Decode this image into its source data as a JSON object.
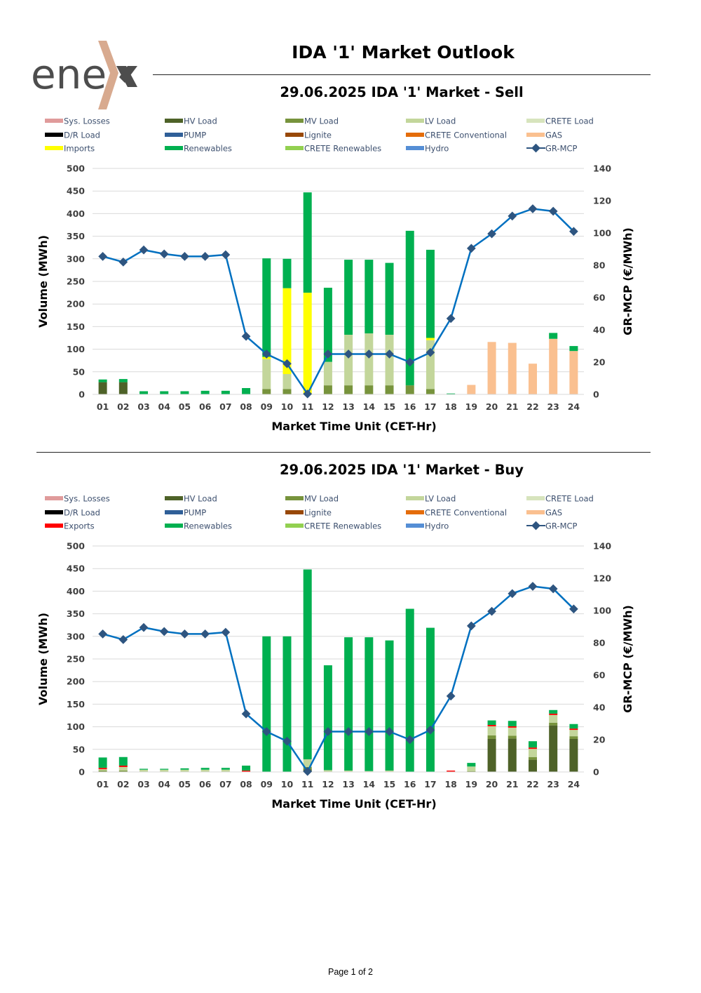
{
  "header": {
    "title": "IDA '1' Market Outlook",
    "logo_text": "ene",
    "page_label": "Page 1 of 2"
  },
  "colors": {
    "sys_losses": "#e09b9b",
    "hv_load": "#4e6228",
    "mv_load": "#77933c",
    "lv_load": "#c3d69b",
    "crete_load": "#d7e4bd",
    "dr_load": "#000000",
    "pump": "#2f5f98",
    "lignite": "#984807",
    "crete_conventional": "#e46c0a",
    "gas": "#fac090",
    "imports": "#ffff00",
    "exports": "#ff0000",
    "renewables": "#00b050",
    "crete_renewables": "#92d050",
    "hydro": "#558ed5",
    "mcp_line": "#0070c0",
    "mcp_marker": "#2e5580",
    "logo_gray": "#4d4d4d",
    "logo_accent": "#d8aa8f"
  },
  "chart_data": [
    {
      "type": "bar",
      "title": "29.06.2025  IDA '1' Market - Sell",
      "xlabel": "Market Time Unit (CET-Hr)",
      "ylabel": "Volume (MWh)",
      "y2label": "GR-MCP (€/MWh)",
      "ylim": [
        0,
        500
      ],
      "y2lim": [
        0,
        140
      ],
      "yticks": [
        "0",
        "50",
        "100",
        "150",
        "200",
        "250",
        "300",
        "350",
        "400",
        "450",
        "500"
      ],
      "y2ticks": [
        "0",
        "20",
        "40",
        "60",
        "80",
        "100",
        "120",
        "140"
      ],
      "categories": [
        "01",
        "02",
        "03",
        "04",
        "05",
        "06",
        "07",
        "08",
        "09",
        "10",
        "11",
        "12",
        "13",
        "14",
        "15",
        "16",
        "17",
        "18",
        "19",
        "20",
        "21",
        "22",
        "23",
        "24"
      ],
      "legend": [
        {
          "label": "Sys. Losses",
          "key": "sys_losses"
        },
        {
          "label": "HV Load",
          "key": "hv_load"
        },
        {
          "label": "MV Load",
          "key": "mv_load"
        },
        {
          "label": "LV Load",
          "key": "lv_load"
        },
        {
          "label": "CRETE Load",
          "key": "crete_load"
        },
        {
          "label": "D/R Load",
          "key": "dr_load"
        },
        {
          "label": "PUMP",
          "key": "pump"
        },
        {
          "label": "Lignite",
          "key": "lignite"
        },
        {
          "label": "CRETE Conventional",
          "key": "crete_conventional"
        },
        {
          "label": "GAS",
          "key": "gas"
        },
        {
          "label": "Imports",
          "key": "imports"
        },
        {
          "label": "Renewables",
          "key": "renewables"
        },
        {
          "label": "CRETE Renewables",
          "key": "crete_renewables"
        },
        {
          "label": "Hydro",
          "key": "hydro"
        },
        {
          "label": "GR-MCP",
          "key": "mcp",
          "line": true
        }
      ],
      "series": [
        {
          "name": "HV Load",
          "key": "hv_load",
          "values": [
            27,
            27,
            0,
            0,
            0,
            0,
            0,
            0,
            0,
            0,
            0,
            0,
            0,
            0,
            0,
            0,
            0,
            0,
            0,
            0,
            0,
            0,
            0,
            0
          ]
        },
        {
          "name": "MV Load",
          "key": "mv_load",
          "values": [
            0,
            0,
            0,
            0,
            0,
            0,
            0,
            0,
            12,
            12,
            0,
            20,
            20,
            20,
            20,
            20,
            12,
            0,
            0,
            0,
            0,
            0,
            0,
            0
          ]
        },
        {
          "name": "LV Load",
          "key": "lv_load",
          "values": [
            0,
            0,
            0,
            0,
            0,
            0,
            0,
            0,
            66,
            33,
            0,
            52,
            112,
            115,
            112,
            0,
            108,
            0,
            0,
            0,
            0,
            0,
            0,
            0
          ]
        },
        {
          "name": "GAS",
          "key": "gas",
          "values": [
            0,
            0,
            0,
            0,
            0,
            0,
            0,
            0,
            0,
            0,
            0,
            0,
            0,
            0,
            0,
            0,
            0,
            0,
            21,
            116,
            114,
            68,
            123,
            96
          ]
        },
        {
          "name": "Imports",
          "key": "imports",
          "values": [
            0,
            0,
            0,
            0,
            0,
            0,
            0,
            0,
            5,
            190,
            225,
            0,
            0,
            0,
            0,
            0,
            5,
            0,
            0,
            0,
            0,
            0,
            0,
            0
          ]
        },
        {
          "name": "Renewables",
          "key": "renewables",
          "values": [
            6,
            7,
            7,
            7,
            7,
            8,
            8,
            14,
            218,
            65,
            222,
            164,
            166,
            163,
            159,
            342,
            195,
            2,
            0,
            0,
            0,
            0,
            13,
            11
          ]
        }
      ],
      "mcp_series": {
        "name": "GR-MCP",
        "values": [
          85.5,
          82,
          89.5,
          87,
          85.5,
          85.5,
          86.5,
          36,
          25,
          19,
          0.3,
          25,
          25,
          25,
          25,
          20,
          26,
          47,
          90.5,
          99.5,
          110.5,
          115,
          113.5,
          101
        ]
      }
    },
    {
      "type": "bar",
      "title": "29.06.2025  IDA '1' Market - Buy",
      "xlabel": "Market Time Unit (CET-Hr)",
      "ylabel": "Volume (MWh)",
      "y2label": "GR-MCP (€/MWh)",
      "ylim": [
        0,
        500
      ],
      "y2lim": [
        0,
        140
      ],
      "yticks": [
        "0",
        "50",
        "100",
        "150",
        "200",
        "250",
        "300",
        "350",
        "400",
        "450",
        "500"
      ],
      "y2ticks": [
        "0",
        "20",
        "40",
        "60",
        "80",
        "100",
        "120",
        "140"
      ],
      "categories": [
        "01",
        "02",
        "03",
        "04",
        "05",
        "06",
        "07",
        "08",
        "09",
        "10",
        "11",
        "12",
        "13",
        "14",
        "15",
        "16",
        "17",
        "18",
        "19",
        "20",
        "21",
        "22",
        "23",
        "24"
      ],
      "legend": [
        {
          "label": "Sys. Losses",
          "key": "sys_losses"
        },
        {
          "label": "HV Load",
          "key": "hv_load"
        },
        {
          "label": "MV Load",
          "key": "mv_load"
        },
        {
          "label": "LV Load",
          "key": "lv_load"
        },
        {
          "label": "CRETE Load",
          "key": "crete_load"
        },
        {
          "label": "D/R Load",
          "key": "dr_load"
        },
        {
          "label": "PUMP",
          "key": "pump"
        },
        {
          "label": "Lignite",
          "key": "lignite"
        },
        {
          "label": "CRETE Conventional",
          "key": "crete_conventional"
        },
        {
          "label": "GAS",
          "key": "gas"
        },
        {
          "label": "Exports",
          "key": "exports"
        },
        {
          "label": "Renewables",
          "key": "renewables"
        },
        {
          "label": "CRETE Renewables",
          "key": "crete_renewables"
        },
        {
          "label": "Hydro",
          "key": "hydro"
        },
        {
          "label": "GR-MCP",
          "key": "mcp",
          "line": true
        }
      ],
      "series": [
        {
          "name": "HV Load",
          "key": "hv_load",
          "values": [
            0,
            0,
            0,
            0,
            0,
            0,
            0,
            0,
            0,
            0,
            6,
            0,
            0,
            0,
            0,
            0,
            0,
            0,
            0,
            73,
            74,
            27,
            103,
            73
          ]
        },
        {
          "name": "MV Load",
          "key": "mv_load",
          "values": [
            3,
            3,
            0,
            0,
            0,
            0,
            0,
            0,
            0,
            0,
            5,
            0,
            0,
            0,
            0,
            0,
            0,
            0,
            2,
            8,
            6,
            6,
            6,
            6
          ]
        },
        {
          "name": "LV Load",
          "key": "lv_load",
          "values": [
            3,
            8,
            5,
            5,
            5,
            5,
            5,
            0,
            0,
            0,
            17,
            4,
            3,
            2,
            3,
            0,
            0,
            0,
            10,
            20,
            18,
            18,
            17,
            14
          ]
        },
        {
          "name": "Exports",
          "key": "exports",
          "values": [
            3,
            3,
            0,
            0,
            0,
            0,
            0,
            3,
            0,
            0,
            0,
            0,
            0,
            0,
            0,
            0,
            0,
            3,
            0,
            3,
            3,
            3,
            3,
            3
          ]
        },
        {
          "name": "Renewables",
          "key": "renewables",
          "values": [
            23,
            19,
            2,
            2,
            3,
            4,
            4,
            11,
            300,
            300,
            420,
            232,
            295,
            296,
            288,
            361,
            319,
            0,
            8,
            10,
            12,
            14,
            8,
            10
          ]
        }
      ],
      "mcp_series": {
        "name": "GR-MCP",
        "values": [
          85.5,
          82,
          89.5,
          87,
          85.5,
          85.5,
          86.5,
          36,
          25,
          19,
          0.3,
          25,
          25,
          25,
          25,
          20,
          26,
          47,
          90.5,
          99.5,
          110.5,
          115,
          113.5,
          101
        ]
      }
    }
  ]
}
